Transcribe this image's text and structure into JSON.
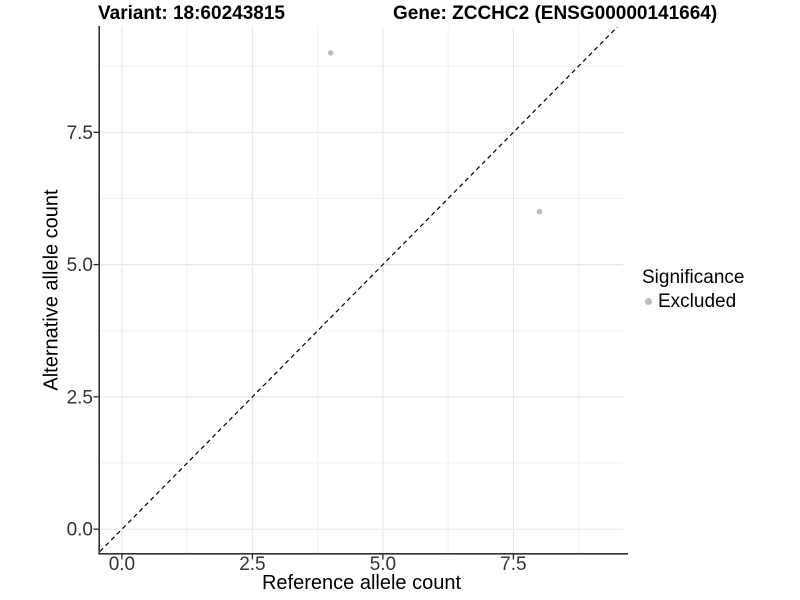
{
  "figure": {
    "title_left": "Variant: 18:60243815",
    "title_right": "Gene: ZCCHC2 (ENSG00000141664)"
  },
  "chart_data": {
    "type": "scatter",
    "title": "Variant: 18:60243815  |  Gene: ZCCHC2 (ENSG00000141664)",
    "xlabel": "Reference allele count",
    "ylabel": "Alternative allele count",
    "xlim": [
      -0.42,
      9.6
    ],
    "ylim": [
      -0.45,
      9.49
    ],
    "x_ticks": [
      0.0,
      2.5,
      5.0,
      7.5
    ],
    "x_tick_labels": [
      "0.0",
      "2.5",
      "5.0",
      "7.5"
    ],
    "y_ticks": [
      0.0,
      2.5,
      5.0,
      7.5
    ],
    "y_tick_labels": [
      "0.0",
      "2.5",
      "5.0",
      "7.5"
    ],
    "x_minor_ticks": [
      1.25,
      3.75,
      6.25,
      8.75
    ],
    "y_minor_ticks": [
      1.25,
      3.75,
      6.25,
      8.75
    ],
    "grid": true,
    "series": [
      {
        "name": "Excluded",
        "color": "#bdbdbd",
        "points": [
          [
            4,
            9
          ],
          [
            8,
            6
          ]
        ]
      }
    ],
    "identity_line": {
      "equation": "y = x",
      "style": "dashed",
      "color": "#000000"
    },
    "legend": {
      "title": "Significance",
      "position": "right",
      "entries": [
        {
          "label": "Excluded",
          "color": "#bdbdbd"
        }
      ]
    }
  },
  "colors": {
    "background": "#ffffff",
    "grid_major": "#e7e7e7",
    "grid_minor": "#f2f2f2",
    "axis_line": "#333333",
    "tick_mark": "#333333",
    "tick_text": "#333333",
    "point": "#bdbdbd"
  }
}
